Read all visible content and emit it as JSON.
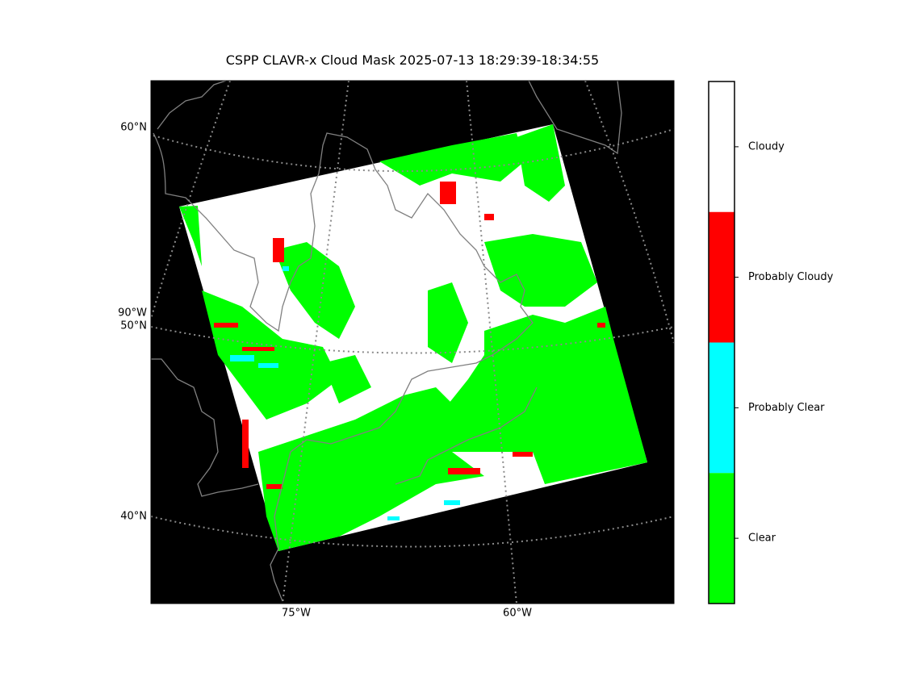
{
  "title": "CSPP CLAVR-x Cloud Mask 2025-07-13 18:29:39-18:34:55",
  "map": {
    "lat_labels": [
      "60°N",
      "50°N",
      "40°N"
    ],
    "lon_labels": [
      "75°W",
      "60°W"
    ],
    "edge_lon_label": "90°W"
  },
  "colorbar": {
    "categories": [
      {
        "label": "Cloudy",
        "color": "#ffffff"
      },
      {
        "label": "Probably Cloudy",
        "color": "#ff0000"
      },
      {
        "label": "Probably Clear",
        "color": "#00ffff"
      },
      {
        "label": "Clear",
        "color": "#00ff00"
      }
    ]
  }
}
